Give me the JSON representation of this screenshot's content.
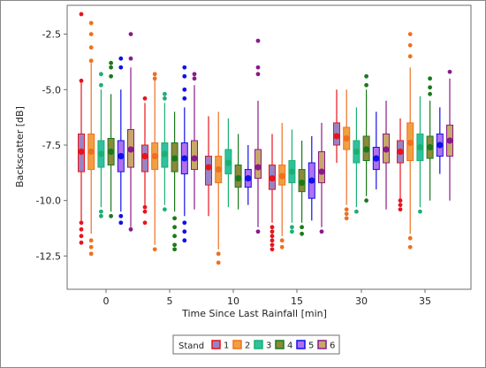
{
  "chart_data": {
    "type": "box",
    "title": "",
    "xlabel": "Time Since Last Rainfall [min]",
    "ylabel": "Backscatter [dB]",
    "ylim": [
      -14.0,
      -1.2
    ],
    "yticks": [
      -2.5,
      -5.0,
      -7.5,
      -10.0,
      -12.5
    ],
    "categories": [
      "0",
      "5",
      "10",
      "15",
      "30",
      "35"
    ],
    "legend": {
      "title": "Stand",
      "position": "bottom"
    },
    "grid": false,
    "series": [
      {
        "name": "1",
        "color": "#e8141c",
        "fill": "#9a82c4",
        "boxes": [
          {
            "whislo": -10.9,
            "q1": -8.7,
            "median": -7.8,
            "q3": -7.0,
            "whishi": -4.6,
            "mean": -7.8,
            "fliers": [
              -11.0,
              -11.3,
              -11.6,
              -11.9,
              -4.6,
              -1.6
            ]
          },
          {
            "whislo": -10.2,
            "q1": -8.7,
            "median": -8.0,
            "q3": -7.5,
            "whishi": -5.6,
            "mean": -8.0,
            "fliers": [
              -10.3,
              -10.5,
              -11.0,
              -5.4
            ]
          },
          {
            "whislo": -10.7,
            "q1": -9.3,
            "median": -8.5,
            "q3": -8.0,
            "whishi": -6.2,
            "mean": -8.5,
            "fliers": []
          },
          {
            "whislo": -11.0,
            "q1": -9.5,
            "median": -9.0,
            "q3": -8.4,
            "whishi": -7.0,
            "mean": -9.0,
            "fliers": [
              -11.2,
              -11.4,
              -11.6,
              -11.8,
              -12.0,
              -12.2
            ]
          },
          {
            "whislo": -8.3,
            "q1": -7.5,
            "median": -7.1,
            "q3": -6.5,
            "whishi": -5.0,
            "mean": -7.1,
            "fliers": []
          },
          {
            "whislo": -10.0,
            "q1": -8.3,
            "median": -7.8,
            "q3": -7.3,
            "whishi": -6.3,
            "mean": -7.8,
            "fliers": [
              -10.0,
              -10.2,
              -10.4
            ]
          }
        ]
      },
      {
        "name": "2",
        "color": "#f07020",
        "fill": "#f0a040",
        "boxes": [
          {
            "whislo": -11.5,
            "q1": -8.6,
            "median": -7.8,
            "q3": -7.0,
            "whishi": -3.8,
            "mean": -7.8,
            "fliers": [
              -11.8,
              -12.1,
              -12.4,
              -3.7,
              -3.1,
              -2.5,
              -2.0
            ]
          },
          {
            "whislo": -12.0,
            "q1": -8.6,
            "median": -8.0,
            "q3": -7.4,
            "whishi": -4.5,
            "mean": -8.0,
            "fliers": [
              -4.5,
              -4.3,
              -12.2
            ]
          },
          {
            "whislo": -12.2,
            "q1": -9.2,
            "median": -8.6,
            "q3": -8.0,
            "whishi": -6.0,
            "mean": -8.6,
            "fliers": [
              -12.4,
              -12.8
            ]
          },
          {
            "whislo": -11.6,
            "q1": -9.3,
            "median": -8.9,
            "q3": -8.4,
            "whishi": -6.5,
            "mean": -8.9,
            "fliers": [
              -11.8,
              -12.1
            ]
          },
          {
            "whislo": -10.2,
            "q1": -7.7,
            "median": -7.2,
            "q3": -6.7,
            "whishi": -5.0,
            "mean": -7.2,
            "fliers": [
              -10.4,
              -10.6,
              -10.8
            ]
          },
          {
            "whislo": -11.5,
            "q1": -8.2,
            "median": -7.4,
            "q3": -6.5,
            "whishi": -4.0,
            "mean": -7.4,
            "fliers": [
              -11.7,
              -12.1,
              -3.5,
              -3.0,
              -2.5
            ]
          }
        ]
      },
      {
        "name": "3",
        "color": "#1bb070",
        "fill": "#30c0a0",
        "boxes": [
          {
            "whislo": -10.3,
            "q1": -8.5,
            "median": -7.9,
            "q3": -7.3,
            "whishi": -5.0,
            "mean": -7.9,
            "fliers": [
              -10.5,
              -10.7,
              -4.8,
              -4.3
            ]
          },
          {
            "whislo": -10.2,
            "q1": -8.5,
            "median": -7.9,
            "q3": -7.4,
            "whishi": -5.6,
            "mean": -7.9,
            "fliers": [
              -10.4,
              -5.4,
              -5.2
            ]
          },
          {
            "whislo": -10.3,
            "q1": -8.8,
            "median": -8.3,
            "q3": -7.7,
            "whishi": -6.3,
            "mean": -8.3,
            "fliers": []
          },
          {
            "whislo": -11.0,
            "q1": -9.2,
            "median": -8.7,
            "q3": -8.2,
            "whishi": -6.8,
            "mean": -8.7,
            "fliers": [
              -11.2,
              -11.4
            ]
          },
          {
            "whislo": -10.3,
            "q1": -8.3,
            "median": -7.8,
            "q3": -7.3,
            "whishi": -5.8,
            "mean": -7.8,
            "fliers": [
              -10.5
            ]
          },
          {
            "whislo": -10.3,
            "q1": -8.2,
            "median": -7.6,
            "q3": -7.0,
            "whishi": -5.3,
            "mean": -7.6,
            "fliers": [
              -10.5
            ]
          }
        ]
      },
      {
        "name": "4",
        "color": "#1a7a1a",
        "fill": "#8a8a3a",
        "boxes": [
          {
            "whislo": -10.5,
            "q1": -8.4,
            "median": -7.8,
            "q3": -7.2,
            "whishi": -5.2,
            "mean": -7.8,
            "fliers": [
              -10.7,
              -3.8,
              -4.0,
              -4.4
            ]
          },
          {
            "whislo": -10.5,
            "q1": -8.7,
            "median": -8.1,
            "q3": -7.4,
            "whishi": -6.0,
            "mean": -8.1,
            "fliers": [
              -10.8,
              -11.2,
              -11.6,
              -12.0,
              -12.2
            ]
          },
          {
            "whislo": -10.4,
            "q1": -9.4,
            "median": -9.0,
            "q3": -8.4,
            "whishi": -7.0,
            "mean": -9.0,
            "fliers": []
          },
          {
            "whislo": -11.0,
            "q1": -9.6,
            "median": -9.2,
            "q3": -8.6,
            "whishi": -7.3,
            "mean": -9.2,
            "fliers": [
              -11.2,
              -11.5
            ]
          },
          {
            "whislo": -9.8,
            "q1": -8.2,
            "median": -7.7,
            "q3": -7.1,
            "whishi": -5.0,
            "mean": -7.7,
            "fliers": [
              -4.4,
              -4.8,
              -10.0
            ]
          },
          {
            "whislo": -10.0,
            "q1": -8.1,
            "median": -7.6,
            "q3": -7.1,
            "whishi": -5.5,
            "mean": -7.6,
            "fliers": [
              -4.5,
              -4.9,
              -5.2
            ]
          }
        ]
      },
      {
        "name": "5",
        "color": "#1010e8",
        "fill": "#b070f0",
        "boxes": [
          {
            "whislo": -10.5,
            "q1": -8.7,
            "median": -8.0,
            "q3": -7.3,
            "whishi": -5.0,
            "mean": -8.0,
            "fliers": [
              -10.7,
              -11.0,
              -3.6,
              -4.0
            ]
          },
          {
            "whislo": -10.7,
            "q1": -8.8,
            "median": -8.1,
            "q3": -7.4,
            "whishi": -5.8,
            "mean": -8.1,
            "fliers": [
              -11.0,
              -11.4,
              -11.8,
              -4.0,
              -4.4,
              -5.0,
              -5.4
            ]
          },
          {
            "whislo": -10.2,
            "q1": -9.4,
            "median": -9.0,
            "q3": -8.6,
            "whishi": -7.5,
            "mean": -9.0,
            "fliers": []
          },
          {
            "whislo": -10.9,
            "q1": -9.9,
            "median": -9.1,
            "q3": -8.3,
            "whishi": -7.1,
            "mean": -9.1,
            "fliers": []
          },
          {
            "whislo": -9.5,
            "q1": -8.6,
            "median": -8.1,
            "q3": -7.6,
            "whishi": -6.0,
            "mean": -8.1,
            "fliers": []
          },
          {
            "whislo": -8.8,
            "q1": -8.0,
            "median": -7.5,
            "q3": -7.0,
            "whishi": -5.8,
            "mean": -7.5,
            "fliers": []
          }
        ]
      },
      {
        "name": "6",
        "color": "#8a1a8a",
        "fill": "#c8a86a",
        "boxes": [
          {
            "whislo": -11.2,
            "q1": -8.5,
            "median": -7.7,
            "q3": -6.8,
            "whishi": -4.0,
            "mean": -7.7,
            "fliers": [
              -11.3,
              -3.6,
              -2.5
            ]
          },
          {
            "whislo": -10.4,
            "q1": -8.6,
            "median": -8.1,
            "q3": -7.3,
            "whishi": -4.8,
            "mean": -8.1,
            "fliers": [
              -4.3,
              -4.5
            ]
          },
          {
            "whislo": -11.2,
            "q1": -9.0,
            "median": -8.5,
            "q3": -7.7,
            "whishi": -5.5,
            "mean": -8.5,
            "fliers": [
              -11.4,
              -2.8,
              -4.0,
              -4.3
            ]
          },
          {
            "whislo": -11.2,
            "q1": -9.2,
            "median": -8.7,
            "q3": -7.8,
            "whishi": -6.5,
            "mean": -8.7,
            "fliers": [
              -11.4
            ]
          },
          {
            "whislo": -10.4,
            "q1": -8.3,
            "median": -7.7,
            "q3": -7.0,
            "whishi": -5.5,
            "mean": -7.7,
            "fliers": []
          },
          {
            "whislo": -10.0,
            "q1": -8.0,
            "median": -7.3,
            "q3": -6.6,
            "whishi": -4.5,
            "mean": -7.3,
            "fliers": [
              -4.2
            ]
          }
        ]
      }
    ]
  }
}
